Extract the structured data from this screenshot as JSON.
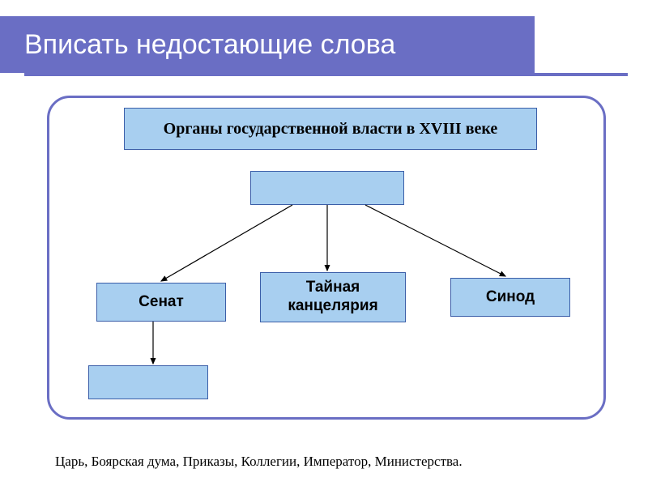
{
  "header": {
    "title": "Вписать недостающие слова"
  },
  "diagram": {
    "title_box": "Органы государственной власти в XVIII веке",
    "nodes": {
      "senate": "Сенат",
      "secret_chancellery": "Тайная\nканцелярия",
      "synod": "Синод"
    }
  },
  "footer": {
    "word_bank": "Царь, Боярская дума, Приказы, Коллегии, Император, Министерства."
  },
  "colors": {
    "header_bg": "#6a6ec4",
    "box_fill": "#a8cff0",
    "box_border": "#3b5ea8",
    "arrow": "#000000"
  }
}
